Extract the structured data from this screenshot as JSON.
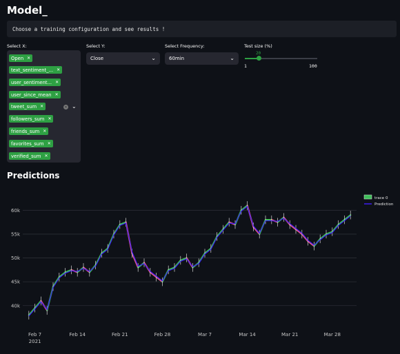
{
  "page": {
    "title": "Model_",
    "info_text": "Choose a training configuration and see results !"
  },
  "controls": {
    "select_x": {
      "label": "Select X:",
      "chips": [
        "Open",
        "text_sentiment_...",
        "user_sentiment...",
        "user_since_mean",
        "tweet_sum",
        "followers_sum",
        "friends_sum",
        "favorites_sum",
        "verified_sum"
      ]
    },
    "select_y": {
      "label": "Select Y:",
      "value": "Close"
    },
    "select_frequency": {
      "label": "Select Frequency:",
      "value": "60min"
    },
    "test_size": {
      "label": "Test size (%)",
      "value": "20",
      "min": "1",
      "max": "100",
      "fraction": 0.19
    }
  },
  "section_title": "Predictions",
  "colors": {
    "accent": "#2ea043",
    "prediction": "#3b1cf0",
    "candle_up": "#3fbf5a",
    "candle_down": "#e55a8a"
  },
  "chart_data": {
    "type": "line",
    "title": "",
    "series": [
      {
        "name": "trace 0",
        "kind": "candlestick-close",
        "x": [
          "2021-02-06",
          "2021-02-07",
          "2021-02-08",
          "2021-02-09",
          "2021-02-10",
          "2021-02-11",
          "2021-02-12",
          "2021-02-13",
          "2021-02-14",
          "2021-02-15",
          "2021-02-16",
          "2021-02-17",
          "2021-02-18",
          "2021-02-19",
          "2021-02-20",
          "2021-02-21",
          "2021-02-22",
          "2021-02-23",
          "2021-02-24",
          "2021-02-25",
          "2021-02-26",
          "2021-02-27",
          "2021-02-28",
          "2021-03-01",
          "2021-03-02",
          "2021-03-03",
          "2021-03-04",
          "2021-03-05",
          "2021-03-06",
          "2021-03-07",
          "2021-03-08",
          "2021-03-09",
          "2021-03-10",
          "2021-03-11",
          "2021-03-12",
          "2021-03-13",
          "2021-03-14",
          "2021-03-15",
          "2021-03-16",
          "2021-03-17",
          "2021-03-18",
          "2021-03-19",
          "2021-03-20",
          "2021-03-21",
          "2021-03-22",
          "2021-03-23",
          "2021-03-24",
          "2021-03-25",
          "2021-03-26",
          "2021-03-27",
          "2021-03-28",
          "2021-03-29",
          "2021-03-30",
          "2021-03-31"
        ],
        "values": [
          38000,
          39500,
          41000,
          39000,
          44000,
          46000,
          47000,
          47500,
          47000,
          48000,
          47000,
          48500,
          51000,
          52000,
          55000,
          57000,
          57500,
          51000,
          48000,
          49000,
          47000,
          46000,
          45000,
          47500,
          48000,
          49500,
          50000,
          48000,
          49000,
          51000,
          52000,
          54500,
          56000,
          57500,
          57000,
          60000,
          61000,
          56500,
          55000,
          58000,
          58000,
          57500,
          58500,
          57000,
          56000,
          55000,
          53500,
          52500,
          54000,
          55000,
          55500,
          57000,
          58000,
          59000
        ]
      },
      {
        "name": "Prediction",
        "x": [
          "2021-02-06",
          "2021-02-07",
          "2021-02-08",
          "2021-02-09",
          "2021-02-10",
          "2021-02-11",
          "2021-02-12",
          "2021-02-13",
          "2021-02-14",
          "2021-02-15",
          "2021-02-16",
          "2021-02-17",
          "2021-02-18",
          "2021-02-19",
          "2021-02-20",
          "2021-02-21",
          "2021-02-22",
          "2021-02-23",
          "2021-02-24",
          "2021-02-25",
          "2021-02-26",
          "2021-02-27",
          "2021-02-28",
          "2021-03-01",
          "2021-03-02",
          "2021-03-03",
          "2021-03-04",
          "2021-03-05",
          "2021-03-06",
          "2021-03-07",
          "2021-03-08",
          "2021-03-09",
          "2021-03-10",
          "2021-03-11",
          "2021-03-12",
          "2021-03-13",
          "2021-03-14",
          "2021-03-15",
          "2021-03-16",
          "2021-03-17",
          "2021-03-18",
          "2021-03-19",
          "2021-03-20",
          "2021-03-21",
          "2021-03-22",
          "2021-03-23",
          "2021-03-24",
          "2021-03-25",
          "2021-03-26",
          "2021-03-27",
          "2021-03-28",
          "2021-03-29",
          "2021-03-30",
          "2021-03-31"
        ],
        "values": [
          37800,
          39300,
          40800,
          39200,
          43800,
          45800,
          46800,
          47300,
          47200,
          47800,
          47200,
          48300,
          50800,
          51800,
          54800,
          56800,
          57300,
          51300,
          48300,
          48800,
          47200,
          46200,
          45200,
          47300,
          47800,
          49300,
          49800,
          48200,
          48800,
          50800,
          51800,
          54300,
          55800,
          57300,
          57200,
          59800,
          60800,
          56700,
          55200,
          57800,
          57800,
          57700,
          58300,
          57200,
          56200,
          55200,
          53700,
          52700,
          53800,
          54800,
          55300,
          56800,
          57800,
          58800
        ]
      }
    ],
    "x_tick_labels": [
      "Feb 7",
      "Feb 14",
      "Feb 21",
      "Feb 28",
      "Mar 7",
      "Mar 14",
      "Mar 21",
      "Mar 28"
    ],
    "x_subtick_label": "2021",
    "y_tick_labels": [
      "40k",
      "45k",
      "50k",
      "55k",
      "60k"
    ],
    "y_ticks": [
      40000,
      45000,
      50000,
      55000,
      60000
    ],
    "ylim": [
      36500,
      62500
    ],
    "xlim": [
      "2021-02-05",
      "2021-04-01"
    ],
    "legend": [
      "trace 0",
      "Prediction"
    ],
    "legend_position": "top-right",
    "grid": true
  }
}
